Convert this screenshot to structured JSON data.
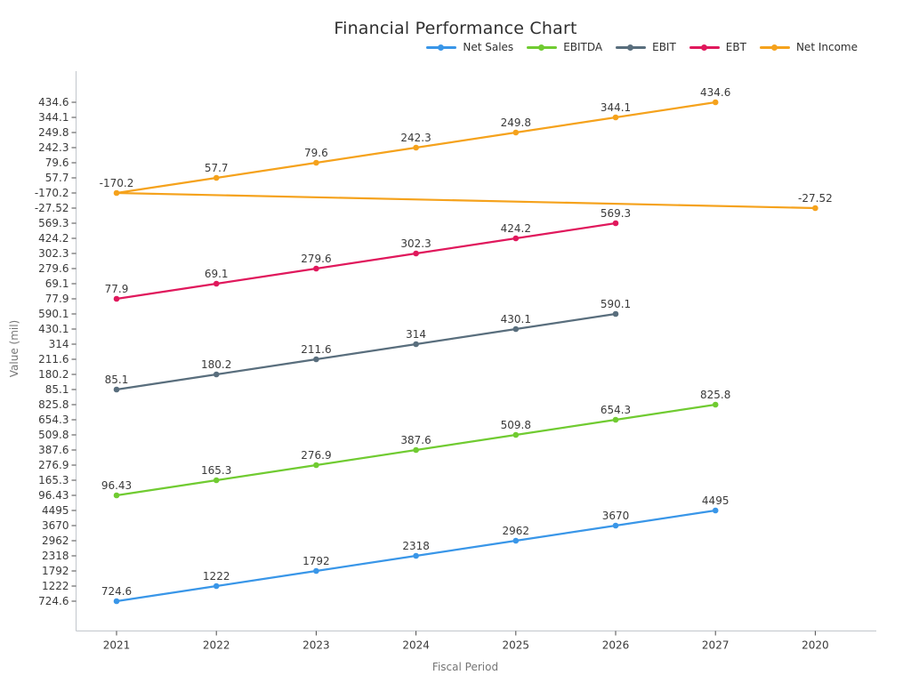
{
  "chart_data": {
    "type": "line",
    "title": "Financial Performance Chart",
    "xlabel": "Fiscal Period",
    "ylabel": "Value (mil)",
    "legend_position": "top-right",
    "grid": false,
    "background": "#ffffff",
    "text_color": "#3a3a3a",
    "x_tick_labels": [
      "2021",
      "2022",
      "2023",
      "2024",
      "2025",
      "2026",
      "2027",
      "2020"
    ],
    "y_tick_labels_top_to_bottom": [
      "434.6",
      "344.1",
      "249.8",
      "242.3",
      "79.6",
      "57.7",
      "-170.2",
      "-27.52",
      "569.3",
      "424.2",
      "302.3",
      "279.6",
      "69.1",
      "77.9",
      "590.1",
      "430.1",
      "314",
      "211.6",
      "180.2",
      "85.1",
      "825.8",
      "654.3",
      "509.8",
      "387.6",
      "276.9",
      "165.3",
      "96.43",
      "4495",
      "3670",
      "2962",
      "2318",
      "1792",
      "1222",
      "724.6"
    ],
    "band_order_top_to_bottom": [
      "Net Income",
      "EBT",
      "EBIT",
      "EBITDA",
      "Net Sales"
    ],
    "series": [
      {
        "name": "Net Sales",
        "color": "#3996e8",
        "x": [
          "2021",
          "2022",
          "2023",
          "2024",
          "2025",
          "2026",
          "2027"
        ],
        "values": [
          724.6,
          1222,
          1792,
          2318,
          2962,
          3670,
          4495
        ],
        "labels": [
          "724.6",
          "1222",
          "1792",
          "2318",
          "2962",
          "3670",
          "4495"
        ]
      },
      {
        "name": "EBITDA",
        "color": "#70cb31",
        "x": [
          "2021",
          "2022",
          "2023",
          "2024",
          "2025",
          "2026",
          "2027"
        ],
        "values": [
          96.43,
          165.3,
          276.9,
          387.6,
          509.8,
          654.3,
          825.8
        ],
        "labels": [
          "96.43",
          "165.3",
          "276.9",
          "387.6",
          "509.8",
          "654.3",
          "825.8"
        ]
      },
      {
        "name": "EBIT",
        "color": "#596e7d",
        "x": [
          "2021",
          "2022",
          "2023",
          "2024",
          "2025",
          "2026"
        ],
        "values": [
          85.1,
          180.2,
          211.6,
          314,
          430.1,
          590.1
        ],
        "labels": [
          "85.1",
          "180.2",
          "211.6",
          "314",
          "430.1",
          "590.1"
        ]
      },
      {
        "name": "EBT",
        "color": "#e0185c",
        "x": [
          "2021",
          "2022",
          "2023",
          "2024",
          "2025",
          "2026"
        ],
        "values": [
          77.9,
          69.1,
          279.6,
          302.3,
          424.2,
          569.3
        ],
        "labels": [
          "77.9",
          "69.1",
          "279.6",
          "302.3",
          "424.2",
          "569.3"
        ]
      },
      {
        "name": "Net Income",
        "color": "#f5a21c",
        "x": [
          "2020",
          "2021",
          "2022",
          "2023",
          "2024",
          "2025",
          "2026",
          "2027"
        ],
        "values": [
          -27.52,
          -170.2,
          57.7,
          79.6,
          242.3,
          249.8,
          344.1,
          434.6
        ],
        "labels": [
          "-27.52",
          "-170.2",
          "57.7",
          "79.6",
          "242.3",
          "249.8",
          "344.1",
          "434.6"
        ]
      }
    ]
  }
}
